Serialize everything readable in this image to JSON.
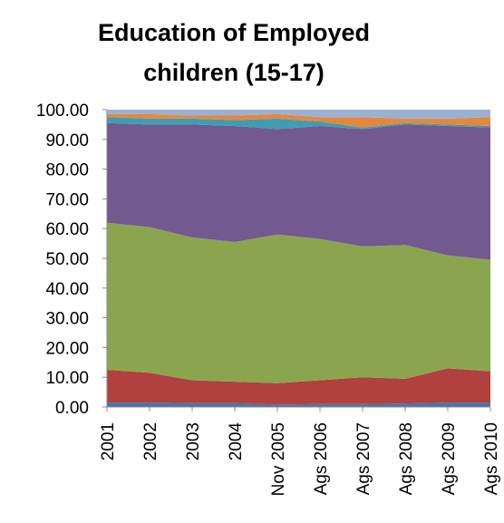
{
  "chart_data": {
    "type": "stacked-area",
    "title": "Education of Employed children (15-17)",
    "categories": [
      "2001",
      "2002",
      "2003",
      "2004",
      "Nov 2005",
      "Ags 2006",
      "Ags 2007",
      "Ags 2008",
      "Ags 2009",
      "Ags 2010"
    ],
    "series": [
      {
        "color": "#4a73a8",
        "values": [
          1.5,
          1.5,
          1.3,
          1.3,
          0.8,
          1,
          1,
          1.2,
          1.5,
          1.5
        ]
      },
      {
        "color": "#b0413e",
        "values": [
          11,
          10,
          7.7,
          7.2,
          7.2,
          8,
          9,
          8.3,
          11.5,
          10.5
        ]
      },
      {
        "color": "#8ba54f",
        "values": [
          49.5,
          49,
          48,
          47,
          50,
          47.5,
          44,
          45,
          38,
          37.5
        ]
      },
      {
        "color": "#725990",
        "values": [
          33.5,
          34.5,
          38,
          39,
          35.5,
          38,
          39.5,
          40.5,
          43.5,
          44.5
        ]
      },
      {
        "color": "#3f9db3",
        "values": [
          2,
          2,
          2,
          2,
          3.5,
          1.5,
          0.5,
          0.5,
          0.5,
          0.5
        ]
      },
      {
        "color": "#e4883e",
        "values": [
          1,
          1.5,
          1,
          1.5,
          1.5,
          1.5,
          3.5,
          1.5,
          2,
          3
        ]
      },
      {
        "color": "#9bb1d4",
        "values": [
          1.5,
          1.5,
          2,
          2,
          1.5,
          2.5,
          2.5,
          3,
          3,
          2.5
        ]
      }
    ],
    "ylim": [
      0,
      100
    ],
    "yticks": [
      {
        "value": 0,
        "label": "0.00"
      },
      {
        "value": 10,
        "label": "10.00"
      },
      {
        "value": 20,
        "label": "20.00"
      },
      {
        "value": 30,
        "label": "30.00"
      },
      {
        "value": 40,
        "label": "40.00"
      },
      {
        "value": 50,
        "label": "50.00"
      },
      {
        "value": 60,
        "label": "60.00"
      },
      {
        "value": 70,
        "label": "70.00"
      },
      {
        "value": 80,
        "label": "80.00"
      },
      {
        "value": 90,
        "label": "90.00"
      },
      {
        "value": 100,
        "label": "100.00"
      }
    ]
  }
}
